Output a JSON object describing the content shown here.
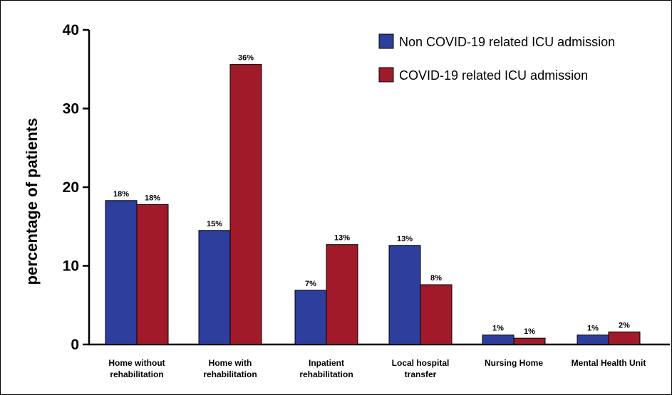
{
  "chart_data": {
    "type": "bar",
    "categories": [
      [
        "Home without",
        "rehabilitation"
      ],
      [
        "Home with",
        "rehabilitation"
      ],
      [
        "Inpatient",
        "rehabilitation"
      ],
      [
        "Local hospital",
        "transfer"
      ],
      [
        "Nursing Home"
      ],
      [
        "Mental Health Unit"
      ]
    ],
    "series": [
      {
        "name": "Non COVID-19 related ICU admission",
        "color": "#2e3e9c",
        "values": [
          18.3,
          14.5,
          6.9,
          12.6,
          1.2,
          1.2
        ],
        "labels": [
          "18%",
          "15%",
          "7%",
          "13%",
          "1%",
          "1%"
        ]
      },
      {
        "name": "COVID-19 related ICU admission",
        "color": "#a01a2a",
        "values": [
          17.8,
          35.6,
          12.7,
          7.6,
          0.8,
          1.6
        ],
        "labels": [
          "18%",
          "36%",
          "13%",
          "8%",
          "1%",
          "2%"
        ]
      }
    ],
    "ylabel": "percentage of patients",
    "xlabel": "",
    "ylim": [
      0,
      40
    ],
    "yticks": [
      "0",
      "10",
      "20",
      "30",
      "40"
    ],
    "grid": false,
    "legend_position": "top-right"
  }
}
